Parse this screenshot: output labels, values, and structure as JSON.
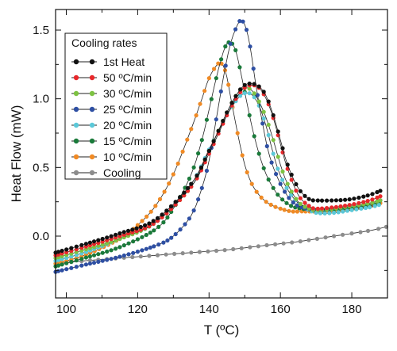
{
  "chart_data": {
    "type": "line",
    "title": "",
    "xlabel": "T (ºC)",
    "ylabel": "Heat Flow (mW)",
    "xlim": [
      97,
      190
    ],
    "ylim": [
      -0.45,
      1.65
    ],
    "x_ticks": [
      100,
      120,
      140,
      160,
      180
    ],
    "y_ticks": [
      0.0,
      0.5,
      1.0,
      1.5
    ],
    "x_tick_labels": [
      "100",
      "120",
      "140",
      "160",
      "180"
    ],
    "y_tick_labels": [
      "0.0",
      "0.5",
      "1.0",
      "1.5"
    ],
    "grid": false,
    "legend_position": "top-left",
    "legend_title": "Cooling rates",
    "series": [
      {
        "name": "1st Heat",
        "color": "#111111",
        "x": [
          97,
          105,
          115,
          125,
          135,
          140,
          145,
          148,
          150,
          152,
          154,
          156,
          158,
          160,
          162,
          165,
          168,
          170,
          175,
          180,
          185,
          188
        ],
        "y": [
          -0.12,
          -0.06,
          0.02,
          0.12,
          0.38,
          0.62,
          0.9,
          1.04,
          1.1,
          1.11,
          1.09,
          1.02,
          0.88,
          0.7,
          0.52,
          0.35,
          0.27,
          0.26,
          0.26,
          0.27,
          0.3,
          0.33
        ]
      },
      {
        "name": "50 ºC/min",
        "color": "#e8282b",
        "x": [
          97,
          105,
          115,
          125,
          135,
          140,
          145,
          148,
          150,
          152,
          154,
          156,
          158,
          160,
          162,
          165,
          168,
          170,
          175,
          180,
          185,
          188
        ],
        "y": [
          -0.14,
          -0.08,
          0.0,
          0.1,
          0.36,
          0.6,
          0.88,
          1.02,
          1.08,
          1.1,
          1.08,
          1.0,
          0.86,
          0.67,
          0.49,
          0.3,
          0.22,
          0.2,
          0.21,
          0.23,
          0.26,
          0.29
        ]
      },
      {
        "name": "30 ºC/min",
        "color": "#7dc242",
        "x": [
          97,
          105,
          115,
          125,
          135,
          140,
          145,
          148,
          150,
          152,
          154,
          156,
          158,
          160,
          162,
          165,
          168,
          170,
          175,
          180,
          185,
          188
        ],
        "y": [
          -0.16,
          -0.1,
          -0.02,
          0.1,
          0.36,
          0.62,
          0.9,
          1.04,
          1.08,
          1.06,
          0.98,
          0.86,
          0.7,
          0.52,
          0.38,
          0.25,
          0.2,
          0.19,
          0.2,
          0.22,
          0.24,
          0.26
        ]
      },
      {
        "name": "25 ºC/min",
        "color": "#2e4fa3",
        "x": [
          97,
          105,
          115,
          125,
          130,
          135,
          138,
          140,
          142,
          144,
          146,
          148,
          149,
          150,
          151,
          152,
          153,
          155,
          157,
          160,
          163,
          166,
          170,
          175,
          180,
          185,
          188
        ],
        "y": [
          -0.26,
          -0.21,
          -0.15,
          -0.07,
          0.0,
          0.15,
          0.35,
          0.55,
          0.85,
          1.15,
          1.4,
          1.54,
          1.57,
          1.54,
          1.45,
          1.3,
          1.12,
          0.82,
          0.58,
          0.38,
          0.26,
          0.21,
          0.19,
          0.2,
          0.22,
          0.24,
          0.26
        ]
      },
      {
        "name": "20 ºC/min",
        "color": "#5bc8d8",
        "x": [
          97,
          105,
          115,
          125,
          135,
          140,
          145,
          148,
          150,
          152,
          154,
          156,
          158,
          160,
          163,
          166,
          170,
          175,
          180,
          185,
          188
        ],
        "y": [
          -0.18,
          -0.12,
          -0.02,
          0.1,
          0.38,
          0.63,
          0.88,
          1.0,
          1.04,
          1.03,
          0.95,
          0.8,
          0.6,
          0.44,
          0.3,
          0.22,
          0.17,
          0.17,
          0.19,
          0.21,
          0.23
        ]
      },
      {
        "name": "15 ºC/min",
        "color": "#1a7a3a",
        "x": [
          97,
          105,
          115,
          125,
          130,
          135,
          138,
          140,
          142,
          144,
          145,
          146,
          147,
          148,
          150,
          152,
          154,
          156,
          158,
          160,
          163,
          166,
          170,
          175,
          180,
          185,
          188
        ],
        "y": [
          -0.22,
          -0.16,
          -0.08,
          0.05,
          0.2,
          0.45,
          0.7,
          0.92,
          1.15,
          1.34,
          1.4,
          1.41,
          1.38,
          1.3,
          1.05,
          0.8,
          0.6,
          0.45,
          0.35,
          0.28,
          0.22,
          0.2,
          0.19,
          0.19,
          0.2,
          0.22,
          0.24
        ]
      },
      {
        "name": "10 ºC/min",
        "color": "#f08a24",
        "x": [
          97,
          105,
          115,
          120,
          125,
          130,
          135,
          138,
          140,
          142,
          143,
          144,
          145,
          146,
          148,
          150,
          152,
          154,
          156,
          158,
          160,
          163,
          166,
          170,
          175,
          180,
          185,
          188
        ],
        "y": [
          -0.2,
          -0.14,
          -0.02,
          0.08,
          0.22,
          0.45,
          0.78,
          1.0,
          1.15,
          1.24,
          1.26,
          1.24,
          1.16,
          1.02,
          0.75,
          0.52,
          0.38,
          0.3,
          0.25,
          0.22,
          0.2,
          0.18,
          0.18,
          0.18,
          0.19,
          0.2,
          0.22,
          0.24
        ]
      },
      {
        "name": "Cooling",
        "color": "#8c8c8c",
        "x": [
          97,
          105,
          115,
          125,
          135,
          145,
          155,
          165,
          175,
          185,
          190
        ],
        "y": [
          -0.2,
          -0.18,
          -0.16,
          -0.14,
          -0.12,
          -0.1,
          -0.07,
          -0.04,
          0.0,
          0.04,
          0.07
        ]
      }
    ]
  }
}
